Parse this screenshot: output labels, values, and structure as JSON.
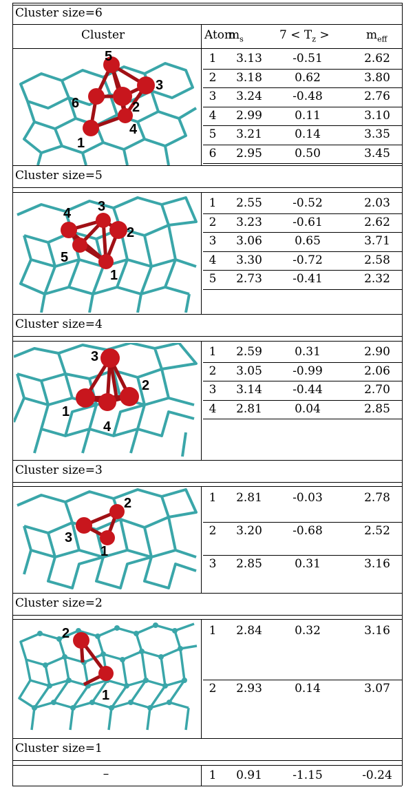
{
  "header": {
    "cluster": "Cluster",
    "atom": "Atom",
    "ms": "m",
    "ms_sub": "s",
    "tz": "7 < T",
    "tz_sub": "z",
    "tz_end": " >",
    "meff": "m",
    "meff_sub": "eff"
  },
  "sections": [
    {
      "label": "Cluster size=6",
      "rows": [
        {
          "atom": "1",
          "ms": "3.13",
          "tz": "-0.51",
          "meff": "2.62"
        },
        {
          "atom": "2",
          "ms": "3.18",
          "tz": "0.62",
          "meff": "3.80"
        },
        {
          "atom": "3",
          "ms": "3.24",
          "tz": "-0.48",
          "meff": "2.76"
        },
        {
          "atom": "4",
          "ms": "2.99",
          "tz": "0.11",
          "meff": "3.10"
        },
        {
          "atom": "5",
          "ms": "3.21",
          "tz": "0.14",
          "meff": "3.35"
        },
        {
          "atom": "6",
          "ms": "2.95",
          "tz": "0.50",
          "meff": "3.45"
        }
      ],
      "image_labels": [
        "1",
        "2",
        "3",
        "4",
        "5",
        "6"
      ]
    },
    {
      "label": "Cluster size=5",
      "rows": [
        {
          "atom": "1",
          "ms": "2.55",
          "tz": "-0.52",
          "meff": "2.03"
        },
        {
          "atom": "2",
          "ms": "3.23",
          "tz": "-0.61",
          "meff": "2.62"
        },
        {
          "atom": "3",
          "ms": "3.06",
          "tz": "0.65",
          "meff": "3.71"
        },
        {
          "atom": "4",
          "ms": "3.30",
          "tz": "-0.72",
          "meff": "2.58"
        },
        {
          "atom": "5",
          "ms": "2.73",
          "tz": "-0.41",
          "meff": "2.32"
        }
      ],
      "image_labels": [
        "1",
        "2",
        "3",
        "4",
        "5"
      ]
    },
    {
      "label": "Cluster size=4",
      "rows": [
        {
          "atom": "1",
          "ms": "2.59",
          "tz": "0.31",
          "meff": "2.90"
        },
        {
          "atom": "2",
          "ms": "3.05",
          "tz": "-0.99",
          "meff": "2.06"
        },
        {
          "atom": "3",
          "ms": "3.14",
          "tz": "-0.44",
          "meff": "2.70"
        },
        {
          "atom": "4",
          "ms": "2.81",
          "tz": "0.04",
          "meff": "2.85"
        }
      ],
      "image_labels": [
        "1",
        "2",
        "3",
        "4"
      ]
    },
    {
      "label": "Cluster size=3",
      "rows": [
        {
          "atom": "1",
          "ms": "2.81",
          "tz": "-0.03",
          "meff": "2.78"
        },
        {
          "atom": "2",
          "ms": "3.20",
          "tz": "-0.68",
          "meff": "2.52"
        },
        {
          "atom": "3",
          "ms": "2.85",
          "tz": "0.31",
          "meff": "3.16"
        }
      ],
      "image_labels": [
        "1",
        "2",
        "3"
      ]
    },
    {
      "label": "Cluster size=2",
      "rows": [
        {
          "atom": "1",
          "ms": "2.84",
          "tz": "0.32",
          "meff": "3.16"
        },
        {
          "atom": "2",
          "ms": "2.93",
          "tz": "0.14",
          "meff": "3.07"
        }
      ],
      "image_labels": [
        "1",
        "2"
      ]
    },
    {
      "label": "Cluster size=1",
      "rows": [
        {
          "atom": "1",
          "ms": "0.91",
          "tz": "-1.15",
          "meff": "-0.24"
        }
      ],
      "dash": "–"
    }
  ],
  "colors": {
    "graphene": "#3aa6a9",
    "atom": "#c8161d"
  }
}
